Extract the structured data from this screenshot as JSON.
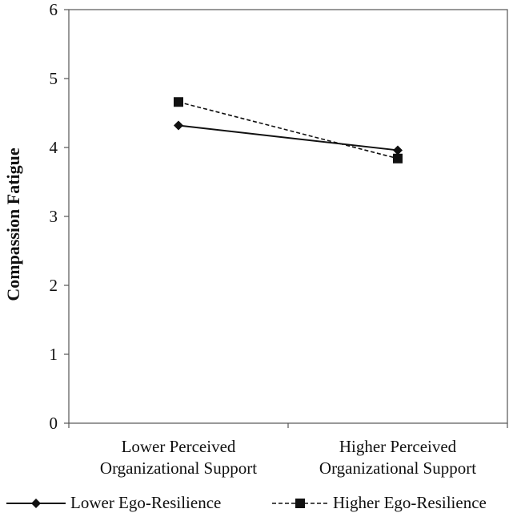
{
  "chart_data": {
    "type": "line",
    "title": "",
    "xlabel": "",
    "ylabel": "Compassion Fatigue",
    "categories": [
      [
        "Lower Perceived",
        "Organizational Support"
      ],
      [
        "Higher Perceived",
        "Organizational Support"
      ]
    ],
    "ylim": [
      0,
      6
    ],
    "yticks": [
      0,
      1,
      2,
      3,
      4,
      5,
      6
    ],
    "grid": false,
    "legend_position": "bottom",
    "series": [
      {
        "name": "Lower Ego-Resilience",
        "values": [
          4.32,
          3.96
        ],
        "marker": "diamond",
        "line_style": "solid",
        "color": "#111111"
      },
      {
        "name": "Higher Ego-Resilience",
        "values": [
          4.66,
          3.84
        ],
        "marker": "square",
        "line_style": "dashed",
        "color": "#111111"
      }
    ]
  }
}
